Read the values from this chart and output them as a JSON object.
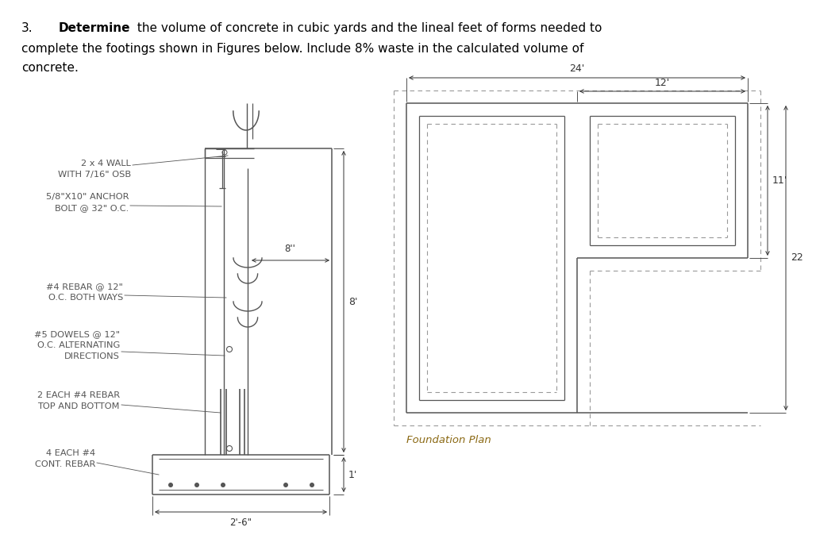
{
  "bg_color": "#ffffff",
  "line_color": "#555555",
  "dim_color": "#333333",
  "foundation_label_color": "#8B6914",
  "title_line1_num": "3.",
  "title_line1_bold": "Determine",
  "title_line1_rest": " the volume of concrete in cubic yards and the lineal feet of forms needed to",
  "title_line2": "complete the footings shown in Figures below. Include 8% waste in the calculated volume of",
  "title_line3": "concrete.",
  "foundation_plan_label": "Foundation Plan",
  "fp_dim_24": "24'",
  "fp_dim_12": "12'",
  "fp_dim_11": "11'",
  "fp_dim_22": "22"
}
